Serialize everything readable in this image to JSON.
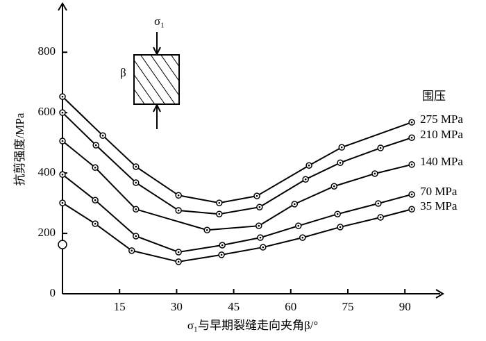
{
  "chart_data": {
    "type": "line",
    "x_label": "σ₁与早期裂缝走向夹角β/°",
    "y_label": "抗剪强度/MPa",
    "legend_title": "围压",
    "inset": {
      "top_label": "σ₁",
      "side_label": "β"
    },
    "xlim": [
      0,
      100
    ],
    "ylim": [
      0,
      950
    ],
    "xticks": [
      15,
      30,
      45,
      60,
      75,
      90
    ],
    "yticks": [
      0,
      200,
      400,
      600,
      800
    ],
    "color": "#000000",
    "series": [
      {
        "name": "275 MPa",
        "color": "#000000",
        "x": [
          0,
          10.6,
          19.3,
          30.5,
          41.2,
          51.1,
          64.8,
          73.4,
          91.8
        ],
        "values": [
          653,
          524,
          421,
          326,
          301,
          324,
          425,
          485,
          568
        ]
      },
      {
        "name": "210 MPa",
        "color": "#000000",
        "x": [
          0,
          8.8,
          19.3,
          30.5,
          41.2,
          51.8,
          63.9,
          73,
          83.6,
          91.8
        ],
        "values": [
          600,
          492,
          368,
          276,
          264,
          287,
          379,
          434,
          483,
          517
        ]
      },
      {
        "name": "140 MPa",
        "color": "#000000",
        "x": [
          0,
          8.6,
          19.3,
          38,
          51.6,
          61,
          71.4,
          82.1,
          91.8
        ],
        "values": [
          506,
          418,
          280,
          211,
          225,
          297,
          356,
          398,
          428
        ]
      },
      {
        "name": "70 MPa",
        "color": "#000000",
        "x": [
          0,
          8.6,
          19.3,
          30.5,
          42,
          52,
          62,
          72.3,
          83,
          91.8
        ],
        "values": [
          395,
          310,
          191,
          138,
          161,
          186,
          225,
          264,
          299,
          329
        ]
      },
      {
        "name": "35 MPa",
        "color": "#000000",
        "x": [
          0,
          8.6,
          18.2,
          30.5,
          41.8,
          52.7,
          63.1,
          73,
          83.6,
          91.8
        ],
        "values": [
          301,
          232,
          143,
          106,
          129,
          154,
          186,
          221,
          253,
          280
        ]
      }
    ],
    "markers": [
      {
        "x": 0,
        "y": 163
      }
    ]
  }
}
